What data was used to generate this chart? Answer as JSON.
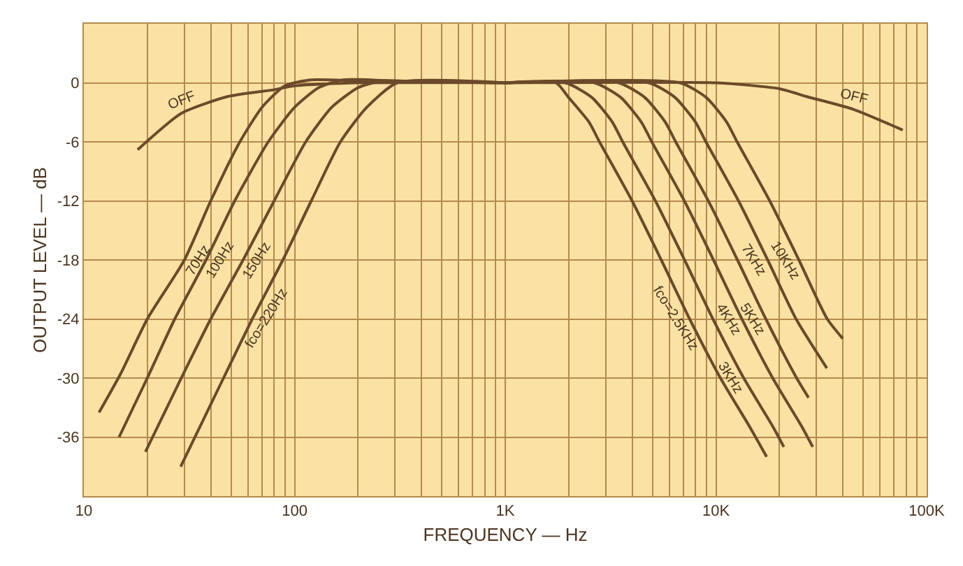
{
  "chart_data": {
    "type": "line",
    "xlabel": "FREQUENCY — Hz",
    "ylabel": "OUTPUT LEVEL — dB",
    "log": "x",
    "grid": true,
    "marker": "none",
    "line_style": "solid",
    "xlim": [
      10,
      100000
    ],
    "xticks": [
      10,
      100,
      {
        "value": 1000,
        "label": "1K"
      },
      {
        "value": 10000,
        "label": "10K"
      },
      {
        "value": 100000,
        "label": "100K"
      }
    ],
    "ylim": [
      -42,
      6
    ],
    "yticks": [
      0,
      -6,
      -12,
      -18,
      -24,
      -30,
      -36
    ],
    "series": [
      {
        "color": "#6b4a2a",
        "x": [
          18,
          29,
          48,
          80,
          100,
          200,
          1000,
          10000,
          20000,
          27000,
          45000,
          77000
        ],
        "values": [
          -6.8,
          -3.1,
          -1.4,
          -0.7,
          -0.3,
          0,
          0,
          0,
          -0.6,
          -1.4,
          -2.7,
          -4.8
        ]
      },
      {
        "color": "#6b4a2a",
        "x": [
          11.8,
          15,
          20,
          30,
          40,
          55,
          70,
          90,
          120,
          200,
          1000
        ],
        "values": [
          -33.5,
          -29.5,
          -24,
          -18,
          -12,
          -6,
          -2.5,
          -0.3,
          0.3,
          0.2,
          0
        ]
      },
      {
        "color": "#6b4a2a",
        "x": [
          14.7,
          20,
          27,
          38,
          52,
          75,
          100,
          130,
          170,
          300,
          1000
        ],
        "values": [
          -36,
          -30,
          -24,
          -18,
          -12,
          -6,
          -2.5,
          -0.5,
          0.3,
          0.2,
          0
        ]
      },
      {
        "color": "#6b4a2a",
        "x": [
          19.6,
          29,
          40,
          57,
          80,
          113,
          150,
          200,
          260,
          400,
          1000
        ],
        "values": [
          -37.5,
          -30,
          -24,
          -18,
          -12,
          -6,
          -2.5,
          -0.5,
          0.2,
          0.1,
          0
        ]
      },
      {
        "color": "#6b4a2a",
        "x": [
          28.8,
          46,
          63,
          88,
          120,
          165,
          220,
          307,
          1000
        ],
        "values": [
          -39,
          -30,
          -24,
          -18,
          -12,
          -6,
          -2.5,
          0,
          0
        ]
      },
      {
        "color": "#6b4a2a",
        "x": [
          1000,
          1740,
          2000,
          2500,
          2800,
          4000,
          5500,
          7500,
          10500,
          14500,
          17400
        ],
        "values": [
          0,
          0,
          -1.5,
          -4,
          -6,
          -12,
          -18,
          -24,
          -30,
          -35,
          -38
        ]
      },
      {
        "color": "#6b4a2a",
        "x": [
          1000,
          1935,
          2580,
          3225,
          3610,
          5160,
          7095,
          9675,
          13545,
          18705,
          21000
        ],
        "values": [
          0,
          0,
          -1.5,
          -4,
          -6,
          -12,
          -18,
          -24,
          -30,
          -35,
          -37
        ]
      },
      {
        "color": "#6b4a2a",
        "x": [
          1000,
          2650,
          3540,
          4425,
          4960,
          7080,
          9735,
          13275,
          18585,
          25665,
          28800
        ],
        "values": [
          0,
          0,
          -1.5,
          -4,
          -6,
          -12,
          -18,
          -24,
          -30,
          -35,
          -37
        ]
      },
      {
        "color": "#6b4a2a",
        "x": [
          1000,
          3450,
          4600,
          5750,
          6440,
          9200,
          12650,
          17250,
          24150,
          27500
        ],
        "values": [
          0,
          0,
          -1.5,
          -4,
          -6,
          -12,
          -18,
          -24,
          -30,
          -32
        ]
      },
      {
        "color": "#6b4a2a",
        "x": [
          1000,
          4800,
          6400,
          8000,
          8960,
          12800,
          17600,
          24000,
          33600
        ],
        "values": [
          0,
          0,
          -1.5,
          -4,
          -6,
          -12,
          -18,
          -24,
          -29
        ]
      },
      {
        "color": "#6b4a2a",
        "x": [
          1000,
          6750,
          9000,
          11250,
          12600,
          18000,
          24750,
          33750,
          40000
        ],
        "values": [
          0,
          0,
          -1.5,
          -4,
          -6,
          -12,
          -18,
          -24,
          -26
        ]
      }
    ],
    "annotations": [
      {
        "text": "OFF",
        "x": 29,
        "y": -3.1
      },
      {
        "text": "OFF",
        "x": 45000,
        "y": -2.7
      },
      {
        "text": "70Hz",
        "x": 30,
        "y": -18
      },
      {
        "text": "100Hz",
        "x": 38,
        "y": -18
      },
      {
        "text": "150Hz",
        "x": 57,
        "y": -18
      },
      {
        "text": "fco=220Hz",
        "x": 63,
        "y": -24
      },
      {
        "text": "fco=2.5KHz",
        "x": 7500,
        "y": -24
      },
      {
        "text": "3KHz",
        "x": 13545,
        "y": -30
      },
      {
        "text": "4KHz",
        "x": 13275,
        "y": -24
      },
      {
        "text": "5KHz",
        "x": 17250,
        "y": -24
      },
      {
        "text": "7KHz",
        "x": 17600,
        "y": -18
      },
      {
        "text": "10KHz",
        "x": 24750,
        "y": -18
      }
    ]
  }
}
